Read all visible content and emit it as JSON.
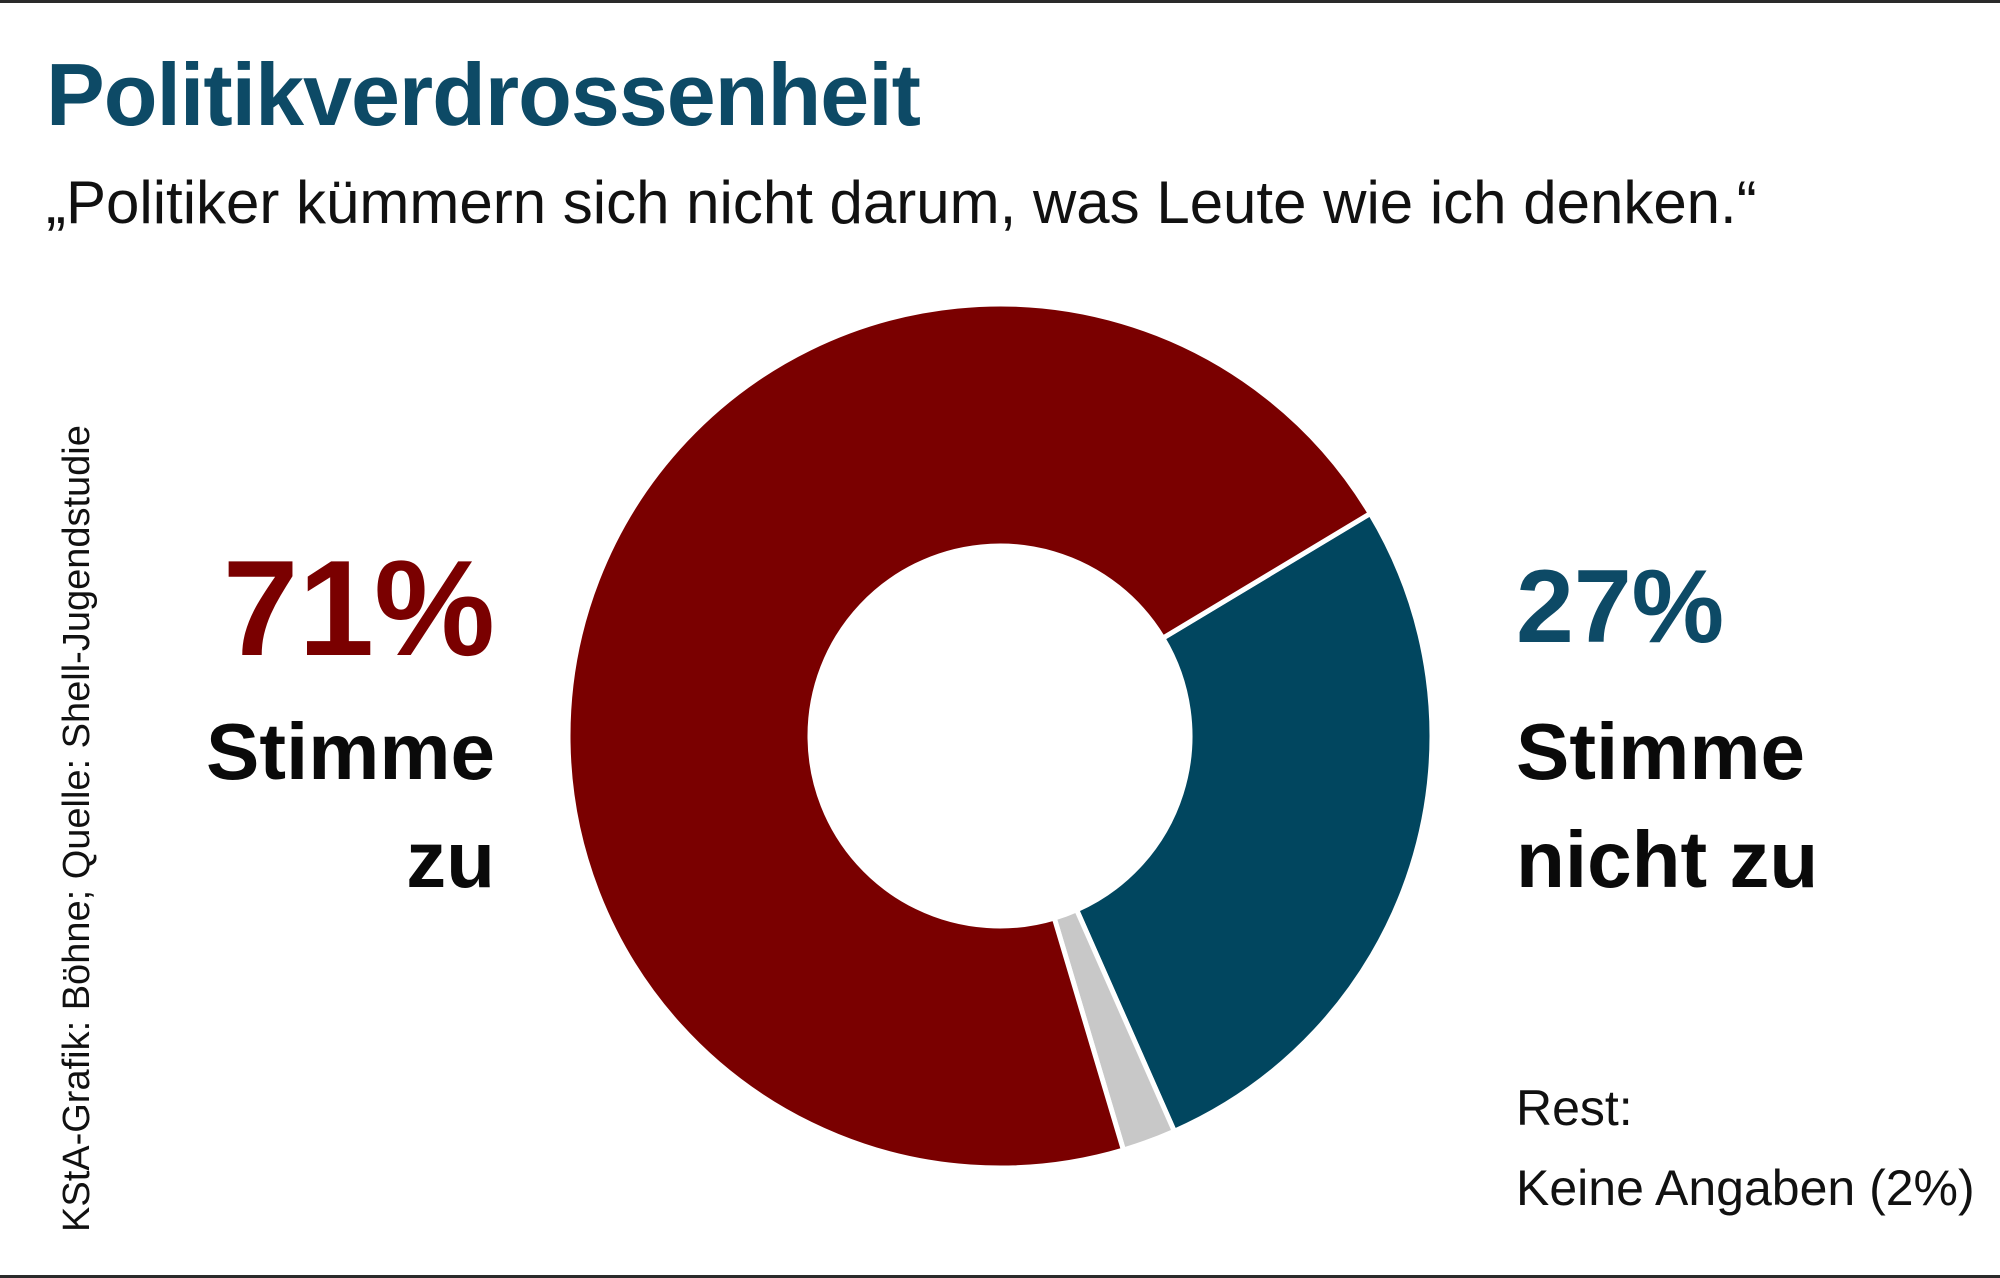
{
  "chart_data": {
    "type": "pie",
    "title": "Politikverdrossenheit",
    "subtitle": "„Politiker kümmern sich nicht darum, was Leute wie ich denken.“",
    "source": "KStA-Grafik: Böhne; Quelle: Shell-Jugendstudie",
    "donut": true,
    "slices": [
      {
        "name": "Stimme nicht zu",
        "value": 27,
        "label": "27%",
        "color": "#01465f"
      },
      {
        "name": "Keine Angaben",
        "value": 2,
        "label": "2%",
        "color": "#c8c8c8"
      },
      {
        "name": "Stimme zu",
        "value": 71,
        "label": "71%",
        "color": "#7a0000"
      }
    ],
    "labels": {
      "left_pct": "71%",
      "left_line1": "Stimme",
      "left_line2": "zu",
      "right_pct": "27%",
      "right_line1": "Stimme",
      "right_line2": "nicht zu",
      "rest_line1": "Rest:",
      "rest_line2": "Keine Angaben (2%)"
    }
  }
}
